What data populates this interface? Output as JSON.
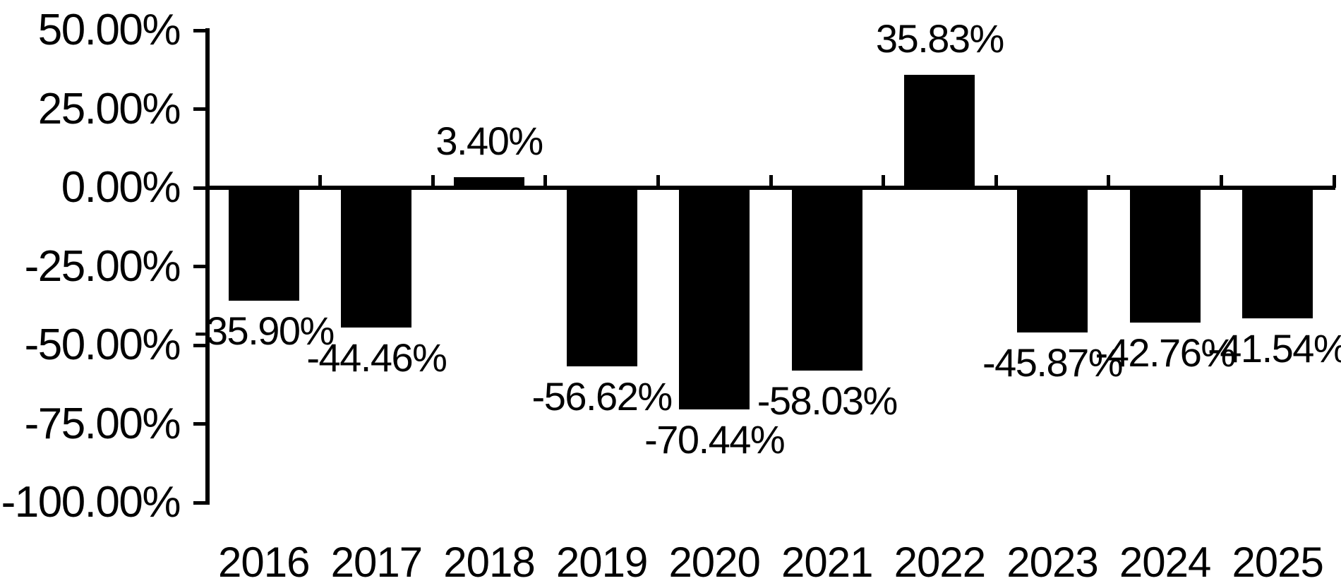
{
  "chart_data": {
    "type": "bar",
    "title": "",
    "xlabel": "",
    "ylabel": "",
    "categories": [
      "2016",
      "2017",
      "2018",
      "2019",
      "2020",
      "2021",
      "2022",
      "2023",
      "2024",
      "2025"
    ],
    "values": [
      -35.9,
      -44.46,
      3.4,
      -56.62,
      -70.44,
      -58.03,
      35.83,
      -45.87,
      -42.76,
      -41.54
    ],
    "data_labels": [
      "-35.90%",
      "-44.46%",
      "3.40%",
      "-56.62%",
      "-70.44%",
      "-58.03%",
      "35.83%",
      "-45.87%",
      "-42.76%",
      "-41.54%"
    ],
    "y_axis": {
      "tick_labels": [
        "50.00%",
        "25.00%",
        "0.00%",
        "-25.00%",
        "-50.00%",
        "-75.00%",
        "-100.00%"
      ],
      "tick_values": [
        50,
        25,
        0,
        -25,
        -50,
        -75,
        -100
      ],
      "range": [
        -100,
        50
      ]
    },
    "grid": false,
    "legend": null,
    "bar_color": "#000000",
    "text_color": "#000000",
    "background_color": "#ffffff"
  }
}
